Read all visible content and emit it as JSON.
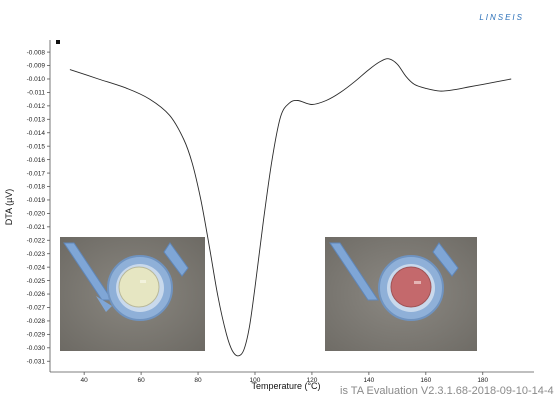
{
  "brand": "LINSEIS",
  "watermark": "is TA Evaluation V2.3.1.68-2018-09-10-14-4",
  "chart_data": {
    "type": "line",
    "title": "",
    "xlabel": "Temperature (°C)",
    "ylabel": "DTA (µV)",
    "xlim": [
      28,
      198
    ],
    "ylim": [
      -0.0318,
      -0.0071
    ],
    "xticks": [
      40,
      60,
      80,
      100,
      120,
      140,
      160,
      180
    ],
    "yticks": [
      -0.008,
      -0.009,
      -0.01,
      -0.011,
      -0.012,
      -0.013,
      -0.014,
      -0.015,
      -0.016,
      -0.017,
      -0.018,
      -0.019,
      -0.02,
      -0.021,
      -0.022,
      -0.023,
      -0.024,
      -0.025,
      -0.026,
      -0.027,
      -0.028,
      -0.029,
      -0.03,
      -0.031
    ],
    "ytick_labels": [
      "-0.008",
      "-0.009",
      "-0.010",
      "-0.011",
      "-0.012",
      "-0.013",
      "-0.014",
      "-0.015",
      "-0.016",
      "-0.017",
      "-0.018",
      "-0.019",
      "-0.020",
      "-0.021",
      "-0.022",
      "-0.023",
      "-0.024",
      "-0.025",
      "-0.026",
      "-0.027",
      "-0.028",
      "-0.029",
      "-0.030",
      "-0.031"
    ],
    "grid": false,
    "series": [
      {
        "color": "#2b2b2b",
        "x": [
          35,
          45,
          55,
          63,
          70,
          75,
          78,
          81,
          84,
          87,
          90,
          92,
          94,
          96,
          98,
          100,
          103,
          106,
          109,
          112,
          115,
          120,
          125,
          130,
          135,
          140,
          144,
          147,
          150,
          153,
          156,
          160,
          165,
          170,
          175,
          180,
          185,
          190
        ],
        "y": [
          -0.0093,
          -0.01,
          -0.0107,
          -0.0115,
          -0.0127,
          -0.0145,
          -0.0163,
          -0.019,
          -0.0225,
          -0.0262,
          -0.029,
          -0.0302,
          -0.0306,
          -0.0302,
          -0.0285,
          -0.0255,
          -0.0205,
          -0.016,
          -0.0128,
          -0.0118,
          -0.0116,
          -0.0119,
          -0.0116,
          -0.011,
          -0.0102,
          -0.0093,
          -0.0087,
          -0.0085,
          -0.0089,
          -0.0098,
          -0.0104,
          -0.0107,
          -0.0109,
          -0.0108,
          -0.0106,
          -0.0104,
          -0.0102,
          -0.01
        ]
      }
    ]
  },
  "insets": [
    {
      "name": "sample-before-photo",
      "sample_color": "#e6e6c2"
    },
    {
      "name": "sample-after-photo",
      "sample_color": "#c4696c"
    }
  ]
}
